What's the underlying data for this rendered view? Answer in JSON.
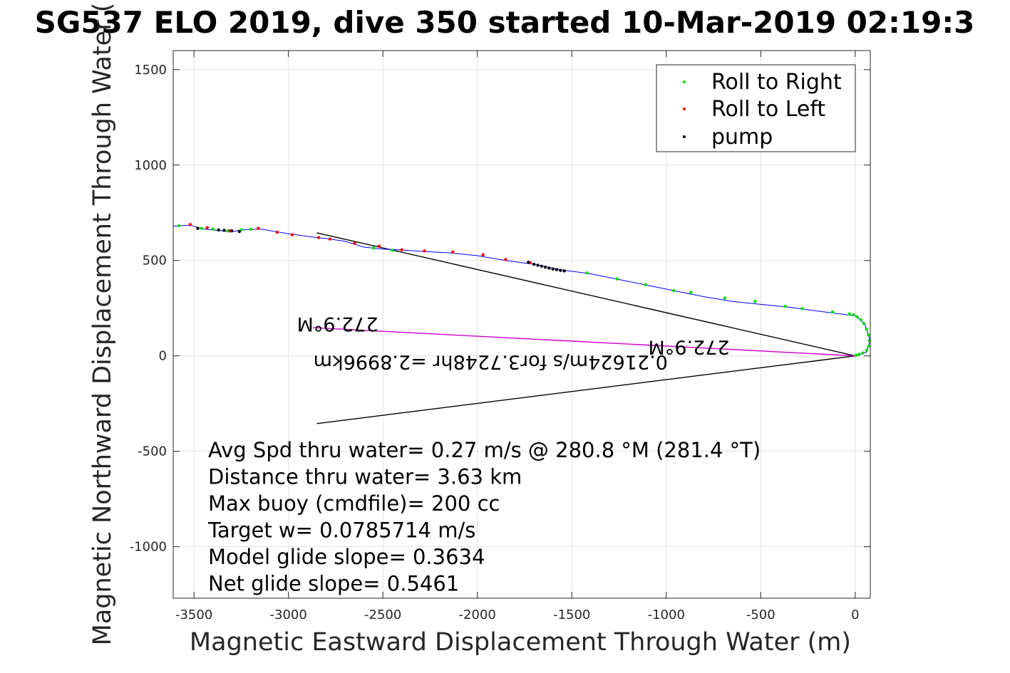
{
  "chart_data": {
    "type": "line",
    "title": "SG537 ELO 2019, dive 350 started 10-Mar-2019 02:19:3",
    "xlabel": "Magnetic Eastward Displacement Through Water (m)",
    "ylabel": "Magnetic Northward Displacement Through Water (",
    "xlim": [
      -3610,
      80
    ],
    "ylim": [
      -1270,
      1600
    ],
    "xticks": [
      "-3500",
      "-3000",
      "-2500",
      "-2000",
      "-1500",
      "-1000",
      "-500",
      "0"
    ],
    "yticks": [
      "-1000",
      "-500",
      "0",
      "500",
      "1000",
      "1500"
    ],
    "grid": true,
    "legend_position": "top-right",
    "legend": [
      {
        "name": "Roll to Right",
        "color": "#00dd00"
      },
      {
        "name": "Roll to Left",
        "color": "#ff0000"
      },
      {
        "name": "pump",
        "color": "#000000"
      }
    ],
    "track": {
      "color": "#0000ff",
      "x": [
        -3610,
        -3520,
        -3450,
        -3300,
        -3250,
        -3150,
        -3000,
        -2850,
        -2800,
        -2700,
        -2600,
        -2500,
        -2400,
        -2300,
        -2150,
        -2000,
        -1850,
        -1700,
        -1550,
        -1400,
        -1250,
        -1100,
        -950,
        -800,
        -650,
        -500,
        -350,
        -200,
        -80,
        0,
        50,
        80,
        60,
        20,
        0
      ],
      "y": [
        680,
        685,
        665,
        650,
        660,
        665,
        640,
        620,
        615,
        600,
        570,
        560,
        555,
        548,
        540,
        525,
        500,
        480,
        450,
        430,
        400,
        370,
        340,
        310,
        285,
        270,
        255,
        235,
        220,
        210,
        170,
        80,
        20,
        5,
        0
      ]
    },
    "roll_right": {
      "x": [
        -3580,
        -3460,
        -3400,
        -3320,
        -3250,
        -3200,
        -2550,
        -2450,
        -1420,
        -1260,
        -1110,
        -960,
        -870,
        -690,
        -530,
        -370,
        -280,
        -120,
        -30,
        -10,
        10,
        30,
        45,
        60,
        70,
        75,
        70,
        60,
        40,
        20,
        5
      ],
      "y": [
        682,
        668,
        665,
        655,
        660,
        664,
        566,
        553,
        435,
        403,
        373,
        342,
        332,
        303,
        285,
        260,
        248,
        230,
        220,
        215,
        205,
        190,
        170,
        140,
        110,
        80,
        50,
        30,
        15,
        8,
        3
      ]
    },
    "roll_left": {
      "x": [
        -3520,
        -3430,
        -3310,
        -3160,
        -3060,
        -2980,
        -2840,
        -2780,
        -2650,
        -2520,
        -2400,
        -2280,
        -2130,
        -1970,
        -1850,
        -1720
      ],
      "y": [
        688,
        672,
        655,
        668,
        648,
        635,
        620,
        612,
        590,
        575,
        556,
        550,
        545,
        530,
        505,
        488
      ]
    },
    "pump": {
      "x": [
        -3480,
        -3370,
        -3340,
        -3300,
        -3260,
        -1730,
        -1700,
        -1680,
        -1660,
        -1640,
        -1620,
        -1600,
        -1580,
        -1560,
        -1540
      ],
      "y": [
        668,
        660,
        658,
        655,
        652,
        490,
        480,
        475,
        470,
        465,
        460,
        455,
        452,
        448,
        445
      ]
    },
    "lines": [
      {
        "name": "upper-bound",
        "color": "#000000",
        "x": [
          -2850,
          0
        ],
        "y": [
          645,
          0
        ]
      },
      {
        "name": "lower-bound",
        "color": "#000000",
        "x": [
          -2850,
          0
        ],
        "y": [
          -355,
          0
        ]
      },
      {
        "name": "net-vector",
        "color": "#cc00cc",
        "x": [
          -2870,
          0
        ],
        "y": [
          148,
          0
        ]
      }
    ],
    "flipped_labels": [
      {
        "text": "272.9°M",
        "x": -2740,
        "y": 200
      },
      {
        "text": "272.9°M",
        "x": -880,
        "y": 80
      },
      {
        "text": "0.21624m/s for3.7248hr =2.8996km",
        "x": -1930,
        "y": 0
      }
    ],
    "annotations": [
      "Avg Spd thru water=  0.27 m/s @ 280.8 °M (281.4 °T)",
      "Distance thru water=  3.63 km",
      "Max buoy (cmdfile)= 200 cc",
      "Target w= 0.0785714 m/s",
      "Model glide slope= 0.3634",
      "Net glide slope= 0.5461"
    ]
  }
}
